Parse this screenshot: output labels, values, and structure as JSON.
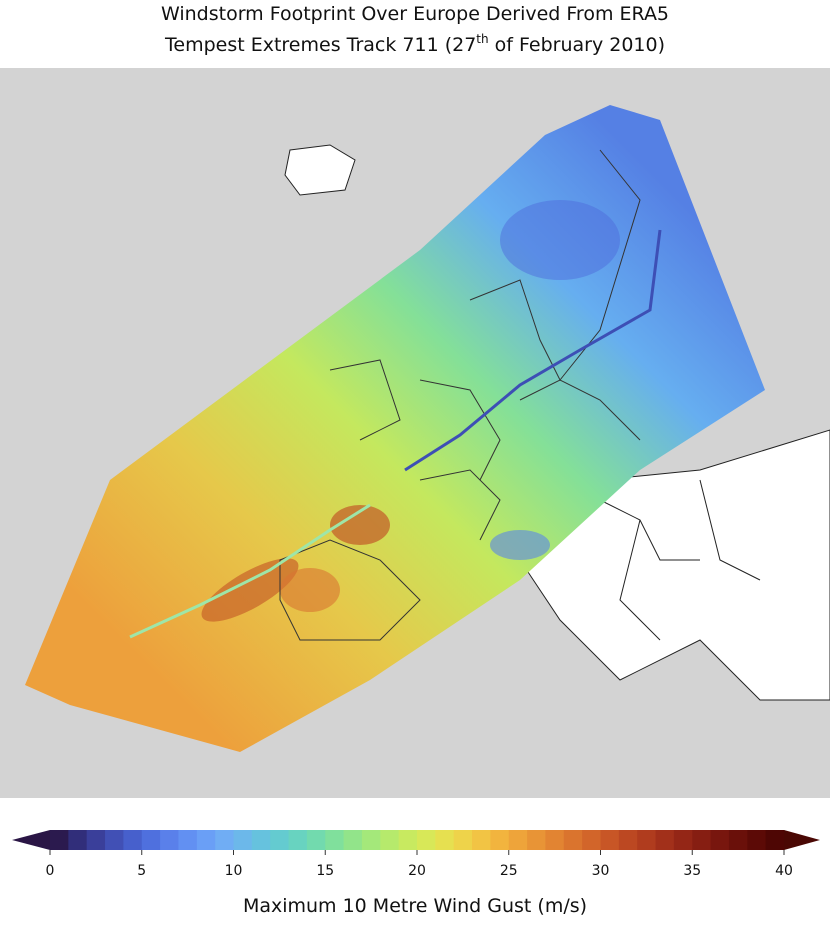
{
  "header": {
    "title_line1": "Windstorm Footprint Over Europe Derived From ERA5",
    "title_line2_start": "Tempest Extremes Track 711 (27",
    "title_line2_sup": "th",
    "title_line2_end": " of February 2010)"
  },
  "colorbar": {
    "label": "Maximum 10 Metre Wind Gust (m/s)",
    "lim": [
      0,
      40
    ],
    "ticks": [
      0,
      5,
      10,
      15,
      20,
      25,
      30,
      35,
      40
    ],
    "under_color": "#2a1545",
    "over_color": "#4a0804",
    "colors": [
      "#2b1a4e",
      "#312e7a",
      "#3a3f9a",
      "#4150b5",
      "#4760cc",
      "#4f70de",
      "#5a80ea",
      "#6290f2",
      "#6a9ff6",
      "#70adf4",
      "#6cb8ea",
      "#66c2de",
      "#64cbd0",
      "#68d3c0",
      "#72daae",
      "#80e09c",
      "#92e48a",
      "#a4e87a",
      "#b6ea6c",
      "#c8ea60",
      "#d8e858",
      "#e6e050",
      "#eed34a",
      "#f2c444",
      "#f2b43e",
      "#eea43a",
      "#e89436",
      "#e28432",
      "#da742e",
      "#d2652a",
      "#c85626",
      "#bc4822",
      "#b03c1e",
      "#a2301a",
      "#942616",
      "#861e12",
      "#78160e",
      "#6a100a",
      "#5c0a06",
      "#4e0604"
    ]
  }
}
